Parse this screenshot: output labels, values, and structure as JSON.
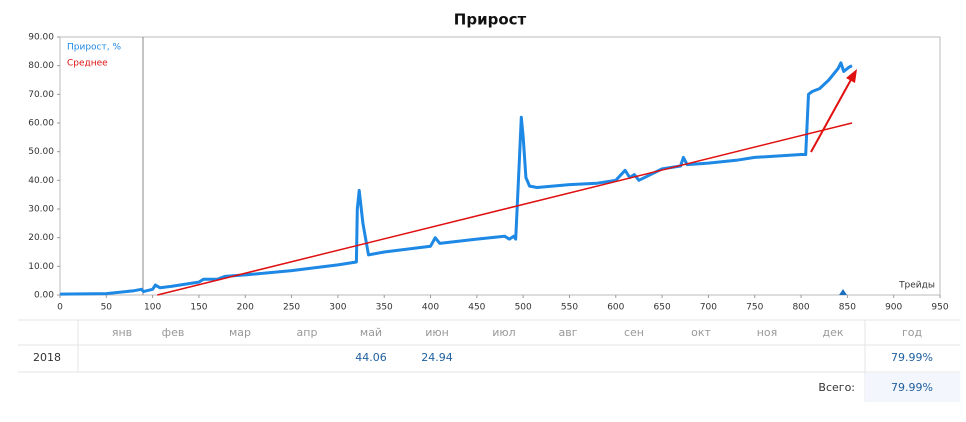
{
  "chart_data": {
    "type": "line",
    "title": "Прирост",
    "x_label": "Трейды",
    "legend": "top-left",
    "xlim": [
      0,
      950
    ],
    "xticks": [
      0,
      50,
      100,
      150,
      200,
      250,
      300,
      350,
      400,
      450,
      500,
      550,
      600,
      650,
      700,
      750,
      800,
      850,
      900,
      950
    ],
    "ylim": [
      0,
      90
    ],
    "yticks": [
      {
        "value": 0,
        "label": "0.00"
      },
      {
        "value": 10,
        "label": "10.00"
      },
      {
        "value": 20,
        "label": "20.00"
      },
      {
        "value": 30,
        "label": "30.00"
      },
      {
        "value": 40,
        "label": "40.00"
      },
      {
        "value": 50,
        "label": "50.00"
      },
      {
        "value": 60,
        "label": "60.00"
      },
      {
        "value": 70,
        "label": "70.00"
      },
      {
        "value": 80,
        "label": "80.00"
      },
      {
        "value": 90,
        "label": "90.00"
      }
    ],
    "series": [
      {
        "name": "Прирост, %",
        "color": "#1e88e5",
        "x": [
          0,
          50,
          80,
          88,
          90,
          100,
          103,
          108,
          120,
          140,
          150,
          155,
          170,
          178,
          200,
          250,
          300,
          320,
          321,
          323,
          327,
          333,
          350,
          400,
          405,
          410,
          450,
          480,
          485,
          490,
          492,
          496,
          498,
          500,
          503,
          507,
          515,
          550,
          580,
          600,
          610,
          615,
          620,
          625,
          650,
          670,
          673,
          677,
          700,
          730,
          750,
          800,
          805,
          808,
          812,
          820,
          830,
          840,
          843,
          846,
          852,
          855
        ],
        "values": [
          0.3,
          0.5,
          1.5,
          2,
          1.2,
          2,
          3.5,
          2.5,
          3,
          4,
          4.5,
          5.5,
          5.5,
          6.5,
          7,
          8.5,
          10.5,
          11.5,
          30,
          36.5,
          25,
          14,
          15,
          17,
          20,
          18,
          19.5,
          20.5,
          19.5,
          20.5,
          19.5,
          48,
          62,
          55,
          41,
          38,
          37.5,
          38.5,
          39,
          40,
          43.5,
          41,
          42,
          40,
          44,
          45,
          48,
          45.5,
          46,
          47,
          48,
          49,
          49,
          70,
          71,
          72,
          75,
          79,
          81,
          78,
          79.5,
          80
        ]
      },
      {
        "name": "Среднее",
        "color": "#e01010",
        "x": [
          105,
          855
        ],
        "values": [
          0,
          60
        ]
      }
    ]
  },
  "table": {
    "columns": [
      "янв",
      "фев",
      "мар",
      "апр",
      "май",
      "июн",
      "июл",
      "авг",
      "сен",
      "окт",
      "ноя",
      "дек",
      "год"
    ],
    "rows": [
      {
        "label": "2018",
        "cells": [
          null,
          null,
          null,
          null,
          44.06,
          24.94,
          null,
          null,
          null,
          null,
          null,
          null,
          "79.99%"
        ]
      }
    ],
    "total": {
      "label": "Всего:",
      "value": "79.99%"
    }
  }
}
